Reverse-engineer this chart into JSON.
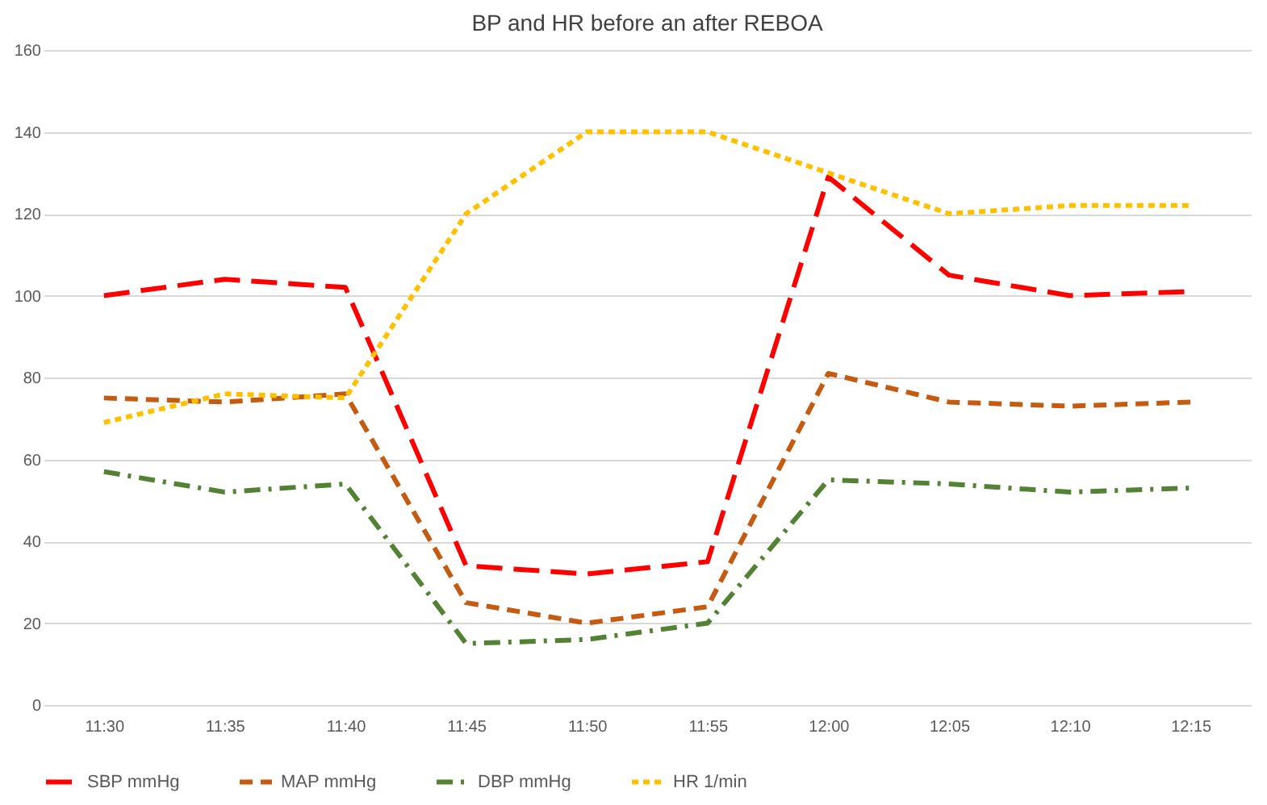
{
  "chart_data": {
    "type": "line",
    "title": "BP and HR before an after REBOA",
    "categories": [
      "11:30",
      "11:35",
      "11:40",
      "11:45",
      "11:50",
      "11:55",
      "12:00",
      "12:05",
      "12:10",
      "12:15"
    ],
    "series": [
      {
        "name": "SBP mmHg",
        "color": "#ff0000",
        "line_style": "longdash",
        "values": [
          100,
          104,
          102,
          34,
          32,
          35,
          129,
          105,
          100,
          101
        ]
      },
      {
        "name": "MAP mmHg",
        "color": "#c55a11",
        "line_style": "dashed",
        "values": [
          75,
          74,
          76,
          25,
          20,
          24,
          81,
          74,
          73,
          74
        ]
      },
      {
        "name": "DBP mmHg",
        "color": "#548235",
        "line_style": "dashdot",
        "values": [
          57,
          52,
          54,
          15,
          16,
          20,
          55,
          54,
          52,
          53
        ]
      },
      {
        "name": "HR 1/min",
        "color": "#ffc000",
        "line_style": "dotted",
        "values": [
          69,
          76,
          75,
          120,
          140,
          140,
          130,
          120,
          122,
          122
        ]
      }
    ],
    "ylim": [
      0,
      160
    ],
    "yticks": [
      0,
      20,
      40,
      60,
      80,
      100,
      120,
      140,
      160
    ],
    "grid": "y",
    "legend": "bottom",
    "marker": "none"
  }
}
